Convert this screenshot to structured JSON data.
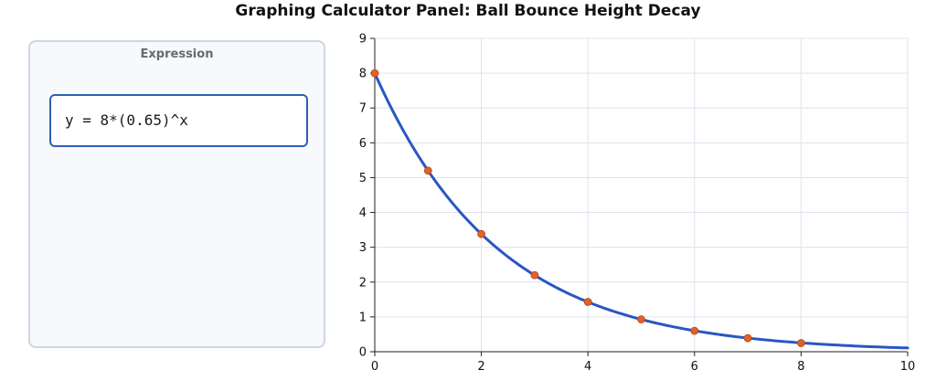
{
  "title": "Graphing Calculator Panel: Ball Bounce Height Decay",
  "expression_panel": {
    "label": "Expression",
    "expression": "y = 8*(0.65)^x"
  },
  "colors": {
    "curve": "#2a56c4",
    "points": "#e0622b",
    "grid": "#dde3ee",
    "panel_border": "#cfd6e2",
    "input_border": "#2f5fb3"
  },
  "chart_data": {
    "type": "line",
    "title": "Graphing Calculator Panel: Ball Bounce Height Decay",
    "xlabel": "",
    "ylabel": "",
    "xlim": [
      0,
      10
    ],
    "ylim": [
      0,
      9
    ],
    "x_ticks": [
      0,
      2,
      4,
      6,
      8,
      10
    ],
    "y_ticks": [
      0,
      1,
      2,
      3,
      4,
      5,
      6,
      7,
      8,
      9
    ],
    "grid": true,
    "function": {
      "a": 8,
      "b": 0.65
    },
    "series": [
      {
        "x": [
          0,
          1,
          2,
          3,
          4,
          5,
          6,
          7,
          8
        ],
        "y": [
          8,
          5.2,
          3.38,
          2.2,
          1.43,
          0.93,
          0.6,
          0.39,
          0.25
        ]
      }
    ]
  }
}
